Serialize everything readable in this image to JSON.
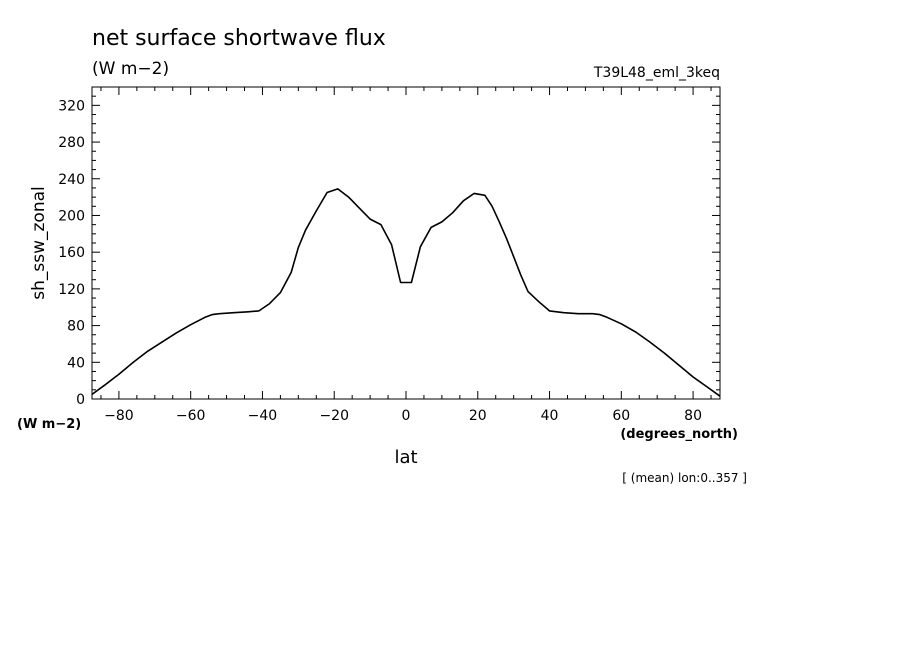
{
  "chart_data": {
    "type": "line",
    "title": "net surface shortwave flux",
    "units": "(W m−2)",
    "experiment": "T39L48_eml_3keq",
    "ylabel": "sh_ssw_zonal",
    "ylabel_units": "(W m−2)",
    "xlabel": "lat",
    "xlabel_units": "(degrees_north)",
    "note": "[ (mean) lon:0..357 ]",
    "xlim": [
      -87.5,
      87.5
    ],
    "ylim": [
      0,
      340
    ],
    "x_ticks": [
      -80,
      -60,
      -40,
      -20,
      0,
      20,
      40,
      60,
      80
    ],
    "x_tick_labels": [
      "−80",
      "−60",
      "−40",
      "−20",
      "0",
      "20",
      "40",
      "60",
      "80"
    ],
    "y_ticks": [
      0,
      40,
      80,
      120,
      160,
      200,
      240,
      280,
      320
    ],
    "y_tick_labels": [
      "0",
      "40",
      "80",
      "120",
      "160",
      "200",
      "240",
      "280",
      "320"
    ],
    "grid": false,
    "series": [
      {
        "x": [
          -87.5,
          -84,
          -80,
          -76,
          -72,
          -68,
          -64,
          -60,
          -56,
          -54,
          -52,
          -48,
          -44,
          -41,
          -38,
          -35,
          -32,
          -30,
          -28,
          -25,
          -22,
          -19,
          -16,
          -13,
          -10,
          -7,
          -4,
          -1.5,
          1.5,
          4,
          7,
          10,
          13,
          16,
          19,
          22,
          24,
          26,
          28,
          30,
          32,
          34,
          37,
          40,
          44,
          48,
          52,
          54,
          56,
          60,
          64,
          68,
          72,
          76,
          80,
          84,
          87.5
        ],
        "y": [
          5,
          15,
          27,
          40,
          52,
          62,
          72,
          81,
          89,
          92,
          93,
          94,
          95,
          96,
          104,
          116,
          138,
          165,
          184,
          205,
          225,
          229,
          220,
          208,
          196,
          190,
          168,
          127,
          127,
          166,
          187,
          193,
          203,
          216,
          224,
          222,
          210,
          193,
          175,
          155,
          135,
          117,
          106,
          96,
          94,
          93,
          93,
          92,
          89,
          82,
          73,
          62,
          50,
          37,
          24,
          13,
          3
        ]
      }
    ]
  }
}
